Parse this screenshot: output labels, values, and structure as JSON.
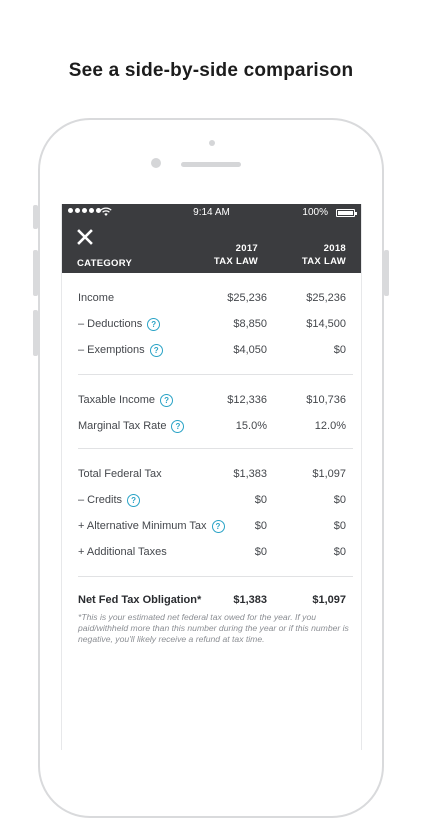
{
  "headline": "See a side-by-side comparison",
  "status_bar": {
    "time": "9:14 AM",
    "battery": "100%"
  },
  "header": {
    "category_label": "CATEGORY",
    "col1_year": "2017",
    "col1_sub": "TAX LAW",
    "col2_year": "2018",
    "col2_sub": "TAX LAW"
  },
  "rows": [
    {
      "label": "Income",
      "v2017": "$25,236",
      "v2018": "$25,236"
    },
    {
      "label": "– Deductions",
      "v2017": "$8,850",
      "v2018": "$14,500"
    },
    {
      "label": "– Exemptions",
      "v2017": "$4,050",
      "v2018": "$0"
    },
    {
      "label": "Taxable Income",
      "v2017": "$12,336",
      "v2018": "$10,736"
    },
    {
      "label": "Marginal Tax Rate",
      "v2017": "15.0%",
      "v2018": "12.0%"
    },
    {
      "label": "Total Federal Tax",
      "v2017": "$1,383",
      "v2018": "$1,097"
    },
    {
      "label": "– Credits",
      "v2017": "$0",
      "v2018": "$0"
    },
    {
      "label": "+ Alternative Minimum Tax",
      "v2017": "$0",
      "v2018": "$0"
    },
    {
      "label": "+ Additional Taxes",
      "v2017": "$0",
      "v2018": "$0"
    },
    {
      "label": "Net Fed Tax Obligation*",
      "v2017": "$1,383",
      "v2018": "$1,097"
    }
  ],
  "help_glyph": "?",
  "footnote": "*This is your estimated net federal tax owed for the year. If you paid/withheld more than this number during the year or if this number is negative, you'll likely receive a refund at tax time.",
  "colors": {
    "header_bg": "#3b3c3f",
    "help_accent": "#2aa3c6",
    "divider": "#e1e2e4"
  }
}
